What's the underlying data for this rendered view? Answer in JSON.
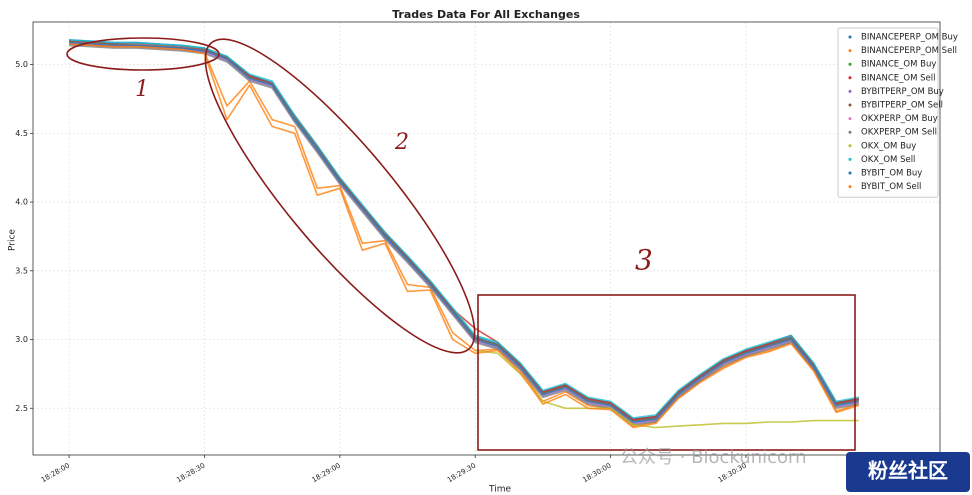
{
  "chart_data": {
    "type": "line",
    "title": "Trades Data For All Exchanges",
    "xlabel": "Time",
    "ylabel": "Price",
    "x": [
      "18:28:00",
      "18:28:05",
      "18:28:10",
      "18:28:15",
      "18:28:20",
      "18:28:25",
      "18:28:30",
      "18:28:35",
      "18:28:40",
      "18:28:45",
      "18:28:50",
      "18:28:55",
      "18:29:00",
      "18:29:05",
      "18:29:10",
      "18:29:15",
      "18:29:20",
      "18:29:25",
      "18:29:30",
      "18:29:35",
      "18:29:40",
      "18:29:45",
      "18:29:50",
      "18:29:55",
      "18:30:00",
      "18:30:05",
      "18:30:10",
      "18:30:15",
      "18:30:20",
      "18:30:25",
      "18:30:30",
      "18:30:35",
      "18:30:40",
      "18:30:45",
      "18:30:50",
      "18:30:55"
    ],
    "xlim": [
      "18:27:52",
      "18:31:13"
    ],
    "xticks": [
      "18:28:00",
      "18:28:30",
      "18:29:00",
      "18:29:30",
      "18:30:00",
      "18:30:30"
    ],
    "ylim": [
      2.16,
      5.31
    ],
    "yticks": [
      2.5,
      {
        "value": 3,
        "label": "3.0"
      },
      3.5,
      {
        "value": 4,
        "label": "4.0"
      },
      4.5,
      {
        "value": 5,
        "label": "5.0"
      }
    ],
    "grid": true,
    "legend": "upper right",
    "series": [
      {
        "name": "BINANCEPERP_OM Buy",
        "color": "#1f77b4",
        "values": [
          5.18,
          5.17,
          5.16,
          5.16,
          5.15,
          5.14,
          5.12,
          5.06,
          4.92,
          4.87,
          4.62,
          4.4,
          4.17,
          3.97,
          3.77,
          3.6,
          3.42,
          3.22,
          3.02,
          2.97,
          2.82,
          2.62,
          2.67,
          2.57,
          2.54,
          2.42,
          2.44,
          2.62,
          2.74,
          2.85,
          2.92,
          2.97,
          3.02,
          2.82,
          2.54,
          2.57
        ]
      },
      {
        "name": "BINANCEPERP_OM Sell",
        "color": "#ff7f0e",
        "values": [
          5.15,
          5.14,
          5.13,
          5.13,
          5.12,
          5.11,
          5.09,
          4.7,
          4.88,
          4.6,
          4.55,
          4.1,
          4.12,
          3.7,
          3.72,
          3.4,
          3.38,
          3.05,
          2.92,
          2.93,
          2.78,
          2.55,
          2.62,
          2.52,
          2.5,
          2.37,
          2.4,
          2.58,
          2.7,
          2.8,
          2.88,
          2.92,
          2.98,
          2.78,
          2.48,
          2.53
        ]
      },
      {
        "name": "BINANCE_OM Buy",
        "color": "#2ca02c",
        "values": [
          5.16,
          5.15,
          5.14,
          5.13,
          5.13,
          5.12,
          5.1,
          5.05,
          4.91,
          4.86,
          4.62,
          4.4,
          4.16,
          3.96,
          3.76,
          3.59,
          3.41,
          3.21,
          3.01,
          2.96,
          2.81,
          2.61,
          2.66,
          2.56,
          2.53,
          2.41,
          2.43,
          2.61,
          2.73,
          2.84,
          2.91,
          2.96,
          3.01,
          2.81,
          2.53,
          2.56
        ]
      },
      {
        "name": "BINANCE_OM Sell",
        "color": "#d62728",
        "values": [
          5.17,
          5.16,
          5.15,
          5.14,
          5.13,
          5.12,
          5.11,
          5.05,
          4.92,
          4.86,
          4.63,
          4.41,
          4.17,
          3.97,
          3.78,
          3.6,
          3.42,
          3.22,
          3.08,
          2.98,
          2.82,
          2.62,
          2.67,
          2.57,
          2.54,
          2.42,
          2.44,
          2.62,
          2.74,
          2.85,
          2.92,
          2.97,
          3.03,
          2.82,
          2.54,
          2.57
        ]
      },
      {
        "name": "BYBITPERP_OM Buy",
        "color": "#9467bd",
        "values": [
          5.15,
          5.14,
          5.13,
          5.13,
          5.12,
          5.11,
          5.09,
          5.03,
          4.89,
          4.84,
          4.59,
          4.37,
          4.14,
          3.94,
          3.74,
          3.57,
          3.39,
          3.19,
          2.99,
          2.94,
          2.79,
          2.59,
          2.64,
          2.54,
          2.51,
          2.39,
          2.41,
          2.59,
          2.71,
          2.82,
          2.89,
          2.94,
          2.99,
          2.79,
          2.51,
          2.54
        ]
      },
      {
        "name": "BYBITPERP_OM Sell",
        "color": "#8c564b",
        "values": [
          5.17,
          5.16,
          5.15,
          5.15,
          5.14,
          5.13,
          5.11,
          5.05,
          4.91,
          4.86,
          4.61,
          4.39,
          4.16,
          3.96,
          3.76,
          3.59,
          3.41,
          3.21,
          3.01,
          2.96,
          2.81,
          2.61,
          2.66,
          2.56,
          2.53,
          2.41,
          2.43,
          2.61,
          2.73,
          2.84,
          2.91,
          2.96,
          3.01,
          2.81,
          2.53,
          2.56
        ]
      },
      {
        "name": "OKXPERP_OM Buy",
        "color": "#e377c2",
        "values": [
          5.16,
          5.15,
          5.14,
          5.14,
          5.13,
          5.12,
          5.1,
          5.04,
          4.9,
          4.85,
          4.6,
          4.38,
          4.15,
          3.95,
          3.75,
          3.58,
          3.4,
          3.2,
          3.0,
          2.95,
          2.8,
          2.6,
          2.65,
          2.55,
          2.52,
          2.4,
          2.42,
          2.6,
          2.72,
          2.83,
          2.9,
          2.95,
          3.0,
          2.8,
          2.52,
          2.55
        ]
      },
      {
        "name": "OKXPERP_OM Sell",
        "color": "#7f7f7f",
        "values": [
          5.14,
          5.13,
          5.12,
          5.12,
          5.11,
          5.1,
          5.08,
          5.02,
          4.88,
          4.83,
          4.58,
          4.36,
          4.13,
          3.93,
          3.73,
          3.56,
          3.38,
          3.18,
          2.98,
          2.93,
          2.78,
          2.58,
          2.63,
          2.53,
          2.5,
          2.38,
          2.4,
          2.58,
          2.7,
          2.81,
          2.88,
          2.93,
          2.98,
          2.78,
          2.5,
          2.53
        ]
      },
      {
        "name": "OKX_OM Buy",
        "color": "#bcbd22",
        "values": [
          null,
          null,
          null,
          null,
          null,
          null,
          null,
          null,
          null,
          null,
          null,
          null,
          null,
          null,
          null,
          null,
          null,
          null,
          2.92,
          2.9,
          2.75,
          2.55,
          2.5,
          2.5,
          2.5,
          2.38,
          2.36,
          2.37,
          2.38,
          2.39,
          2.39,
          2.4,
          2.4,
          2.41,
          2.41,
          2.41
        ]
      },
      {
        "name": "OKX_OM Sell",
        "color": "#17becf",
        "values": [
          5.18,
          5.17,
          5.16,
          5.16,
          5.15,
          5.14,
          5.12,
          5.06,
          4.93,
          4.88,
          4.63,
          4.41,
          4.18,
          3.98,
          3.78,
          3.61,
          3.43,
          3.23,
          3.03,
          2.98,
          2.83,
          2.63,
          2.68,
          2.58,
          2.55,
          2.43,
          2.45,
          2.63,
          2.75,
          2.86,
          2.93,
          2.98,
          3.03,
          2.83,
          2.55,
          2.58
        ]
      },
      {
        "name": "BYBIT_OM Buy",
        "color": "#1f77b4",
        "values": [
          5.16,
          5.15,
          5.14,
          5.14,
          5.13,
          5.12,
          5.1,
          5.04,
          4.9,
          4.85,
          4.6,
          4.38,
          4.15,
          3.95,
          3.75,
          3.58,
          3.4,
          3.2,
          3.0,
          2.95,
          2.8,
          2.6,
          2.65,
          2.55,
          2.52,
          2.4,
          2.42,
          2.6,
          2.72,
          2.83,
          2.9,
          2.95,
          3.0,
          2.8,
          2.52,
          2.55
        ]
      },
      {
        "name": "BYBIT_OM Sell",
        "color": "#ff7f0e",
        "values": [
          5.15,
          5.14,
          5.13,
          5.13,
          5.12,
          5.11,
          5.08,
          4.6,
          4.85,
          4.55,
          4.5,
          4.05,
          4.1,
          3.65,
          3.7,
          3.35,
          3.36,
          3.0,
          2.9,
          2.92,
          2.76,
          2.53,
          2.6,
          2.5,
          2.49,
          2.36,
          2.39,
          2.57,
          2.69,
          2.79,
          2.87,
          2.91,
          2.97,
          2.77,
          2.47,
          2.52
        ]
      }
    ],
    "annotations": [
      "1",
      "2",
      "3"
    ],
    "watermark": "公众号 · Blockunicorn",
    "badge": "粉丝社区"
  }
}
